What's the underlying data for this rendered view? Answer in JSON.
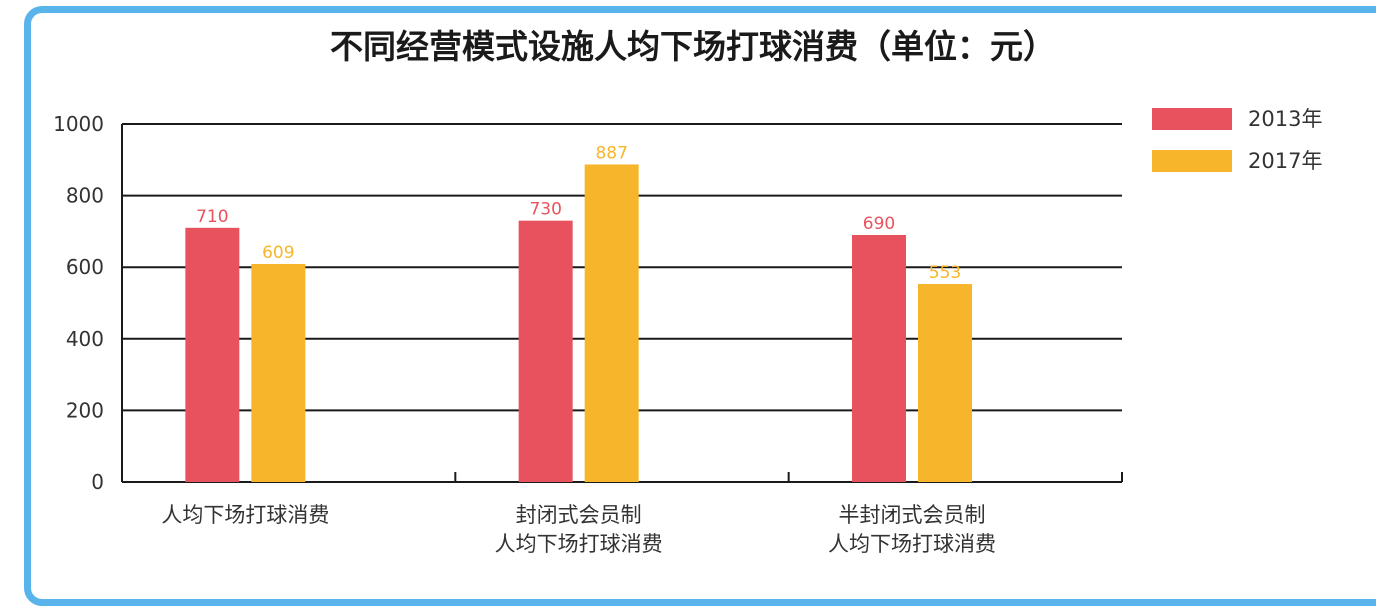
{
  "chart_data": {
    "type": "bar",
    "title": "不同经营模式设施人均下场打球消费（单位：元）",
    "categories": [
      [
        "人均下场打球消费"
      ],
      [
        "封闭式会员制",
        "人均下场打球消费"
      ],
      [
        "半封闭式会员制",
        "人均下场打球消费"
      ]
    ],
    "series": [
      {
        "name": "2013年",
        "color": "#e8525f",
        "values": [
          710,
          730,
          690
        ]
      },
      {
        "name": "2017年",
        "color": "#f7b52b",
        "values": [
          609,
          887,
          553
        ]
      }
    ],
    "ylim": [
      0,
      1000
    ],
    "yticks": [
      0,
      200,
      400,
      600,
      800,
      1000
    ],
    "grid": true,
    "legend": "top-right"
  }
}
